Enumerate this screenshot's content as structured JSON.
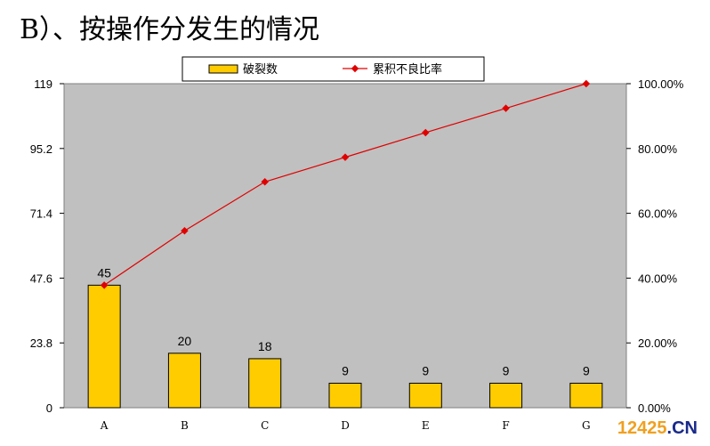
{
  "heading": "B）、按操作分发生的情况",
  "chart_data": {
    "type": "bar",
    "categories": [
      "A",
      "B",
      "C",
      "D",
      "E",
      "F",
      "G"
    ],
    "series": [
      {
        "name": "破裂数",
        "kind": "bar",
        "axis": "left",
        "color": "#FFCC00",
        "values": [
          45,
          20,
          18,
          9,
          9,
          9,
          9
        ]
      },
      {
        "name": "累积不良比率",
        "kind": "line",
        "axis": "right",
        "color": "#E00000",
        "values": [
          37.8,
          54.6,
          69.7,
          77.3,
          84.9,
          92.4,
          100.0
        ]
      }
    ],
    "left_axis": {
      "range": [
        0,
        119
      ],
      "ticks": [
        "0",
        "23.8",
        "47.6",
        "71.4",
        "95.2",
        "119"
      ]
    },
    "right_axis": {
      "range": [
        0,
        100
      ],
      "ticks": [
        "0.00%",
        "20.00%",
        "40.00%",
        "60.00%",
        "80.00%",
        "100.00%"
      ]
    },
    "data_labels": [
      "45",
      "20",
      "18",
      "9",
      "9",
      "9",
      "9"
    ],
    "legend_position": "top",
    "plot_background": "#C0C0C0",
    "grid": false
  },
  "watermark": {
    "main": "12425",
    "suffix": ".CN"
  }
}
